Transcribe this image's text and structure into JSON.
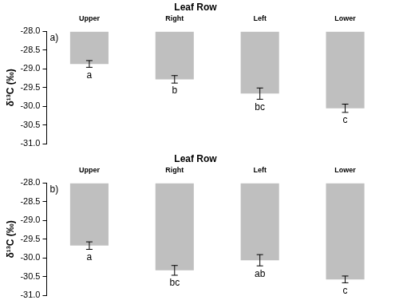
{
  "chart_data": [
    {
      "type": "bar",
      "title": "Leaf Row",
      "annotation": "a)",
      "y_label": "δ¹³C (‰)",
      "categories": [
        "Upper",
        "Right",
        "Left",
        "Lower"
      ],
      "values": [
        -28.87,
        -29.28,
        -29.66,
        -30.05
      ],
      "errors": [
        0.09,
        0.1,
        0.15,
        0.11
      ],
      "group_labels": [
        "a",
        "b",
        "bc",
        "c"
      ],
      "color": "#bfbfbf",
      "grid": false,
      "ylim": [
        -31,
        -28
      ],
      "yticks": [
        {
          "value": -31,
          "label": "-31.0"
        },
        {
          "value": -30.5,
          "label": "-30.5"
        },
        {
          "value": -30,
          "label": "-30.0"
        },
        {
          "value": -29.5,
          "label": "-29.5"
        },
        {
          "value": -29,
          "label": "-29.0"
        },
        {
          "value": -28.5,
          "label": "-28.5"
        },
        {
          "value": -28,
          "label": "-28.0"
        }
      ]
    },
    {
      "type": "bar",
      "title": "Leaf Row",
      "annotation": "b)",
      "y_label": "δ¹³C (‰)",
      "categories": [
        "Upper",
        "Right",
        "Left",
        "Lower"
      ],
      "values": [
        -29.67,
        -30.33,
        -30.06,
        -30.57
      ],
      "errors": [
        0.1,
        0.13,
        0.15,
        0.09
      ],
      "group_labels": [
        "a",
        "bc",
        "ab",
        "c"
      ],
      "color": "#bfbfbf",
      "grid": false,
      "ylim": [
        -31,
        -28
      ],
      "yticks": [
        {
          "value": -31,
          "label": "-31.0"
        },
        {
          "value": -30.5,
          "label": "-30.5"
        },
        {
          "value": -30,
          "label": "-30.0"
        },
        {
          "value": -29.5,
          "label": "-29.5"
        },
        {
          "value": -29,
          "label": "-29.0"
        },
        {
          "value": -28.5,
          "label": "-28.5"
        },
        {
          "value": -28,
          "label": "-28.0"
        }
      ]
    }
  ]
}
